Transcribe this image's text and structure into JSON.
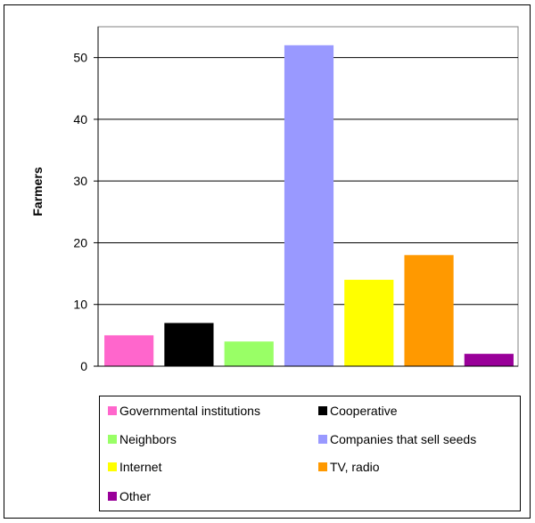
{
  "chart_data": {
    "type": "bar",
    "ylabel": "Farmers",
    "ylim": [
      0,
      55
    ],
    "yticks": [
      0,
      10,
      20,
      30,
      40,
      50
    ],
    "grid": true,
    "legend_position": "bottom",
    "series": [
      {
        "name": "Governmental institutions",
        "value": 5,
        "color": "#ff66cc"
      },
      {
        "name": "Cooperative",
        "value": 7,
        "color": "#000000"
      },
      {
        "name": "Neighbors",
        "value": 4,
        "color": "#99ff66"
      },
      {
        "name": "Companies that sell seeds",
        "value": 52,
        "color": "#9999ff"
      },
      {
        "name": "Internet",
        "value": 14,
        "color": "#ffff00"
      },
      {
        "name": "TV, radio",
        "value": 18,
        "color": "#ff9900"
      },
      {
        "name": "Other",
        "value": 2,
        "color": "#990099"
      }
    ]
  }
}
